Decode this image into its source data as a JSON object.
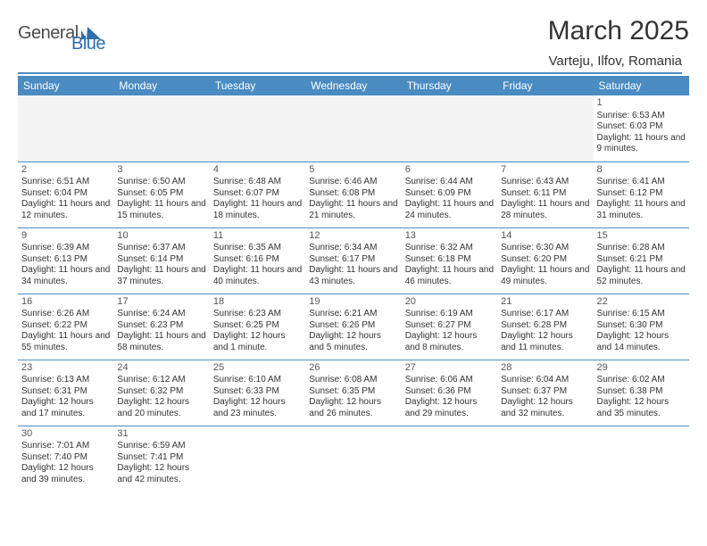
{
  "brand": {
    "part1": "General",
    "part2": "Blue"
  },
  "title": "March 2025",
  "location": "Varteju, Ilfov, Romania",
  "colors": {
    "header_bg": "#4a8bc2",
    "header_text": "#ffffff",
    "border": "#4a8bc2",
    "body_text": "#333333",
    "muted_bg": "#f4f4f4",
    "logo_blue": "#2f6fab",
    "logo_gray": "#4a4a4a"
  },
  "weekdays": [
    "Sunday",
    "Monday",
    "Tuesday",
    "Wednesday",
    "Thursday",
    "Friday",
    "Saturday"
  ],
  "weeks": [
    [
      null,
      null,
      null,
      null,
      null,
      null,
      {
        "n": "1",
        "sunrise": "Sunrise: 6:53 AM",
        "sunset": "Sunset: 6:03 PM",
        "daylight": "Daylight: 11 hours and 9 minutes."
      }
    ],
    [
      {
        "n": "2",
        "sunrise": "Sunrise: 6:51 AM",
        "sunset": "Sunset: 6:04 PM",
        "daylight": "Daylight: 11 hours and 12 minutes."
      },
      {
        "n": "3",
        "sunrise": "Sunrise: 6:50 AM",
        "sunset": "Sunset: 6:05 PM",
        "daylight": "Daylight: 11 hours and 15 minutes."
      },
      {
        "n": "4",
        "sunrise": "Sunrise: 6:48 AM",
        "sunset": "Sunset: 6:07 PM",
        "daylight": "Daylight: 11 hours and 18 minutes."
      },
      {
        "n": "5",
        "sunrise": "Sunrise: 6:46 AM",
        "sunset": "Sunset: 6:08 PM",
        "daylight": "Daylight: 11 hours and 21 minutes."
      },
      {
        "n": "6",
        "sunrise": "Sunrise: 6:44 AM",
        "sunset": "Sunset: 6:09 PM",
        "daylight": "Daylight: 11 hours and 24 minutes."
      },
      {
        "n": "7",
        "sunrise": "Sunrise: 6:43 AM",
        "sunset": "Sunset: 6:11 PM",
        "daylight": "Daylight: 11 hours and 28 minutes."
      },
      {
        "n": "8",
        "sunrise": "Sunrise: 6:41 AM",
        "sunset": "Sunset: 6:12 PM",
        "daylight": "Daylight: 11 hours and 31 minutes."
      }
    ],
    [
      {
        "n": "9",
        "sunrise": "Sunrise: 6:39 AM",
        "sunset": "Sunset: 6:13 PM",
        "daylight": "Daylight: 11 hours and 34 minutes."
      },
      {
        "n": "10",
        "sunrise": "Sunrise: 6:37 AM",
        "sunset": "Sunset: 6:14 PM",
        "daylight": "Daylight: 11 hours and 37 minutes."
      },
      {
        "n": "11",
        "sunrise": "Sunrise: 6:35 AM",
        "sunset": "Sunset: 6:16 PM",
        "daylight": "Daylight: 11 hours and 40 minutes."
      },
      {
        "n": "12",
        "sunrise": "Sunrise: 6:34 AM",
        "sunset": "Sunset: 6:17 PM",
        "daylight": "Daylight: 11 hours and 43 minutes."
      },
      {
        "n": "13",
        "sunrise": "Sunrise: 6:32 AM",
        "sunset": "Sunset: 6:18 PM",
        "daylight": "Daylight: 11 hours and 46 minutes."
      },
      {
        "n": "14",
        "sunrise": "Sunrise: 6:30 AM",
        "sunset": "Sunset: 6:20 PM",
        "daylight": "Daylight: 11 hours and 49 minutes."
      },
      {
        "n": "15",
        "sunrise": "Sunrise: 6:28 AM",
        "sunset": "Sunset: 6:21 PM",
        "daylight": "Daylight: 11 hours and 52 minutes."
      }
    ],
    [
      {
        "n": "16",
        "sunrise": "Sunrise: 6:26 AM",
        "sunset": "Sunset: 6:22 PM",
        "daylight": "Daylight: 11 hours and 55 minutes."
      },
      {
        "n": "17",
        "sunrise": "Sunrise: 6:24 AM",
        "sunset": "Sunset: 6:23 PM",
        "daylight": "Daylight: 11 hours and 58 minutes."
      },
      {
        "n": "18",
        "sunrise": "Sunrise: 6:23 AM",
        "sunset": "Sunset: 6:25 PM",
        "daylight": "Daylight: 12 hours and 1 minute."
      },
      {
        "n": "19",
        "sunrise": "Sunrise: 6:21 AM",
        "sunset": "Sunset: 6:26 PM",
        "daylight": "Daylight: 12 hours and 5 minutes."
      },
      {
        "n": "20",
        "sunrise": "Sunrise: 6:19 AM",
        "sunset": "Sunset: 6:27 PM",
        "daylight": "Daylight: 12 hours and 8 minutes."
      },
      {
        "n": "21",
        "sunrise": "Sunrise: 6:17 AM",
        "sunset": "Sunset: 6:28 PM",
        "daylight": "Daylight: 12 hours and 11 minutes."
      },
      {
        "n": "22",
        "sunrise": "Sunrise: 6:15 AM",
        "sunset": "Sunset: 6:30 PM",
        "daylight": "Daylight: 12 hours and 14 minutes."
      }
    ],
    [
      {
        "n": "23",
        "sunrise": "Sunrise: 6:13 AM",
        "sunset": "Sunset: 6:31 PM",
        "daylight": "Daylight: 12 hours and 17 minutes."
      },
      {
        "n": "24",
        "sunrise": "Sunrise: 6:12 AM",
        "sunset": "Sunset: 6:32 PM",
        "daylight": "Daylight: 12 hours and 20 minutes."
      },
      {
        "n": "25",
        "sunrise": "Sunrise: 6:10 AM",
        "sunset": "Sunset: 6:33 PM",
        "daylight": "Daylight: 12 hours and 23 minutes."
      },
      {
        "n": "26",
        "sunrise": "Sunrise: 6:08 AM",
        "sunset": "Sunset: 6:35 PM",
        "daylight": "Daylight: 12 hours and 26 minutes."
      },
      {
        "n": "27",
        "sunrise": "Sunrise: 6:06 AM",
        "sunset": "Sunset: 6:36 PM",
        "daylight": "Daylight: 12 hours and 29 minutes."
      },
      {
        "n": "28",
        "sunrise": "Sunrise: 6:04 AM",
        "sunset": "Sunset: 6:37 PM",
        "daylight": "Daylight: 12 hours and 32 minutes."
      },
      {
        "n": "29",
        "sunrise": "Sunrise: 6:02 AM",
        "sunset": "Sunset: 6:38 PM",
        "daylight": "Daylight: 12 hours and 35 minutes."
      }
    ],
    [
      {
        "n": "30",
        "sunrise": "Sunrise: 7:01 AM",
        "sunset": "Sunset: 7:40 PM",
        "daylight": "Daylight: 12 hours and 39 minutes."
      },
      {
        "n": "31",
        "sunrise": "Sunrise: 6:59 AM",
        "sunset": "Sunset: 7:41 PM",
        "daylight": "Daylight: 12 hours and 42 minutes."
      },
      null,
      null,
      null,
      null,
      null
    ]
  ]
}
